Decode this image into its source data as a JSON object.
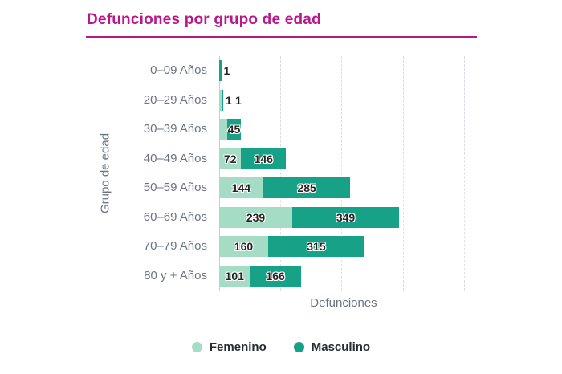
{
  "title": {
    "text": "Defunciones por grupo de edad"
  },
  "chart_data": {
    "type": "bar",
    "orientation": "horizontal",
    "stacked": true,
    "title": "Defunciones por grupo de edad",
    "categories": [
      "0–09 Años",
      "20–29 Años",
      "30–39 Años",
      "40–49 Años",
      "50–59 Años",
      "60–69 Años",
      "70–79 Años",
      "80 y + Años"
    ],
    "series": [
      {
        "name": "Femenino",
        "color": "#a4dcc5",
        "values": [
          0,
          1,
          26,
          72,
          144,
          239,
          160,
          101
        ],
        "labels": [
          "",
          "1",
          "",
          "72",
          "144",
          "239",
          "160",
          "101"
        ]
      },
      {
        "name": "Masculino",
        "color": "#17a287",
        "values": [
          1,
          1,
          45,
          146,
          285,
          349,
          315,
          166
        ],
        "labels": [
          "1",
          "1",
          "45",
          "146",
          "285",
          "349",
          "315",
          "166"
        ]
      }
    ],
    "xlabel": "Defunciones",
    "ylabel": "Grupo de edad",
    "x_max": 800,
    "gridline_interval": 200,
    "grid": "dashed-vertical",
    "legend_position": "bottom",
    "x_tick_labels_visible": false
  },
  "legend": {
    "items": [
      {
        "label": "Femenino",
        "color": "#a4dcc5"
      },
      {
        "label": "Masculino",
        "color": "#17a287"
      }
    ]
  },
  "colors": {
    "accent": "#b9188c",
    "femenino": "#a4dcc5",
    "masculino": "#17a287",
    "value_label_text": "#252423",
    "axis_text": "#6a7480"
  }
}
